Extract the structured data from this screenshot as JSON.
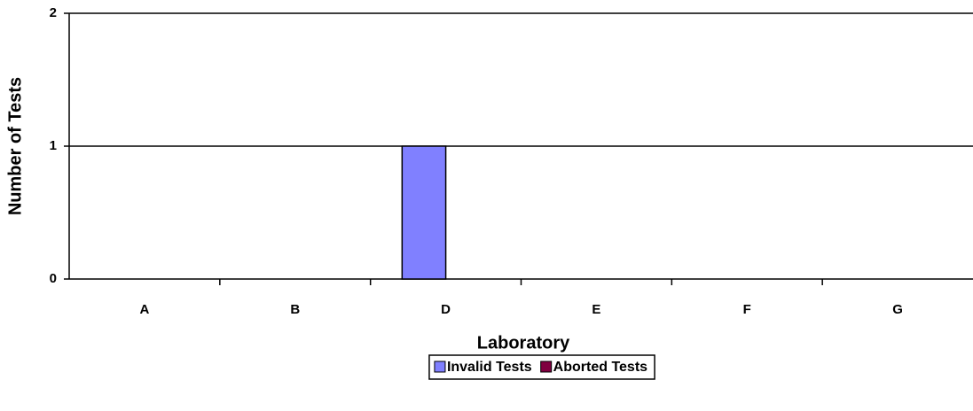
{
  "chart_data": {
    "type": "bar",
    "categories": [
      "A",
      "B",
      "D",
      "E",
      "F",
      "G"
    ],
    "series": [
      {
        "name": "Invalid Tests",
        "color": "#8080ff",
        "values": [
          0,
          0,
          1,
          0,
          0,
          0
        ]
      },
      {
        "name": "Aborted Tests",
        "color": "#800040",
        "values": [
          0,
          0,
          0,
          0,
          0,
          0
        ]
      }
    ],
    "xlabel": "Laboratory",
    "ylabel": "Number of Tests",
    "ylim": [
      0,
      2
    ],
    "yticks": [
      0,
      1,
      2
    ],
    "grid": true,
    "legend": "bottom"
  }
}
